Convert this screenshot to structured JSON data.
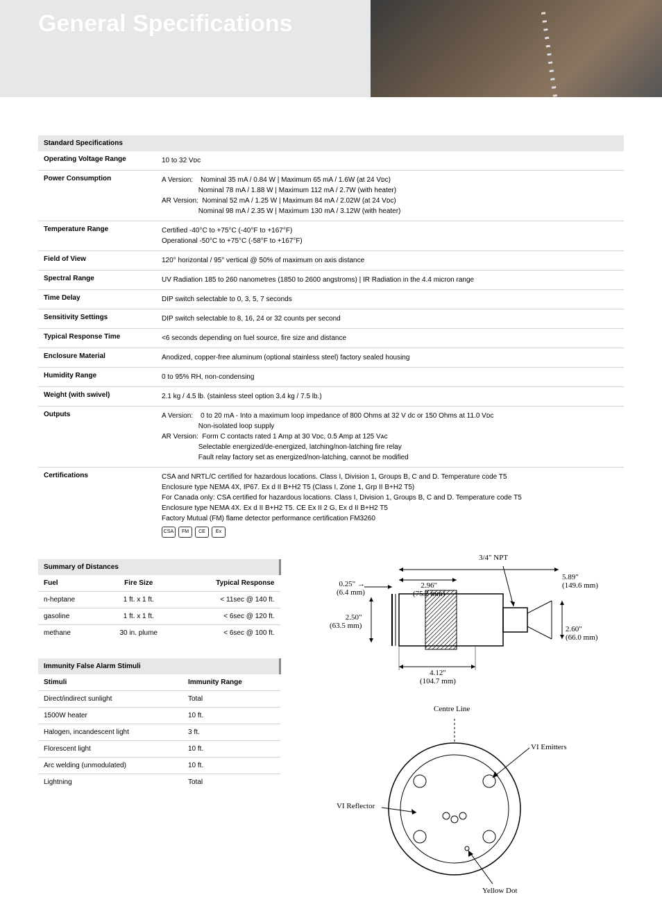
{
  "header": {
    "title": "General Specifications"
  },
  "specs": {
    "section_title": "Standard Specifications",
    "rows": [
      {
        "label": "Operating Voltage Range",
        "value": "10 to 32 Vᴅᴄ"
      },
      {
        "label": "Power Consumption",
        "value": "A Version:&nbsp;&nbsp;&nbsp;&nbsp;Nominal 35 mA / 0.84 W | Maximum 65 mA / 1.6W (at 24 Vᴅᴄ)<br>&nbsp;&nbsp;&nbsp;&nbsp;&nbsp;&nbsp;&nbsp;&nbsp;&nbsp;&nbsp;&nbsp;&nbsp;&nbsp;&nbsp;&nbsp;&nbsp;&nbsp;&nbsp;&nbsp;Nominal 78 mA / 1.88 W | Maximum 112 mA / 2.7W (with heater)<br>AR Version:&nbsp;&nbsp;Nominal 52 mA / 1.25 W | Maximum 84 mA / 2.02W (at 24 Vᴅᴄ)<br>&nbsp;&nbsp;&nbsp;&nbsp;&nbsp;&nbsp;&nbsp;&nbsp;&nbsp;&nbsp;&nbsp;&nbsp;&nbsp;&nbsp;&nbsp;&nbsp;&nbsp;&nbsp;&nbsp;Nominal 98 mA / 2.35 W | Maximum 130 mA / 3.12W (with heater)"
      },
      {
        "label": "Temperature Range",
        "value": "Certified -40°C to +75°C (-40°F to +167°F)<br>Operational -50°C to +75°C (-58°F to +167°F)"
      },
      {
        "label": "Field of View",
        "value": "120° horizontal / 95° vertical @ 50% of maximum on axis distance"
      },
      {
        "label": "Spectral Range",
        "value": "UV Radiation 185 to 260 nanometres (1850 to 2600 angstroms) | IR Radiation in the 4.4 micron range"
      },
      {
        "label": "Time Delay",
        "value": "DIP switch selectable to 0, 3, 5, 7 seconds"
      },
      {
        "label": "Sensitivity Settings",
        "value": "DIP switch selectable to 8, 16, 24 or 32 counts per second"
      },
      {
        "label": "Typical Response Time",
        "value": "<6 seconds depending on fuel source, fire size and distance"
      },
      {
        "label": "Enclosure Material",
        "value": "Anodized, copper-free aluminum (optional stainless steel) factory sealed housing"
      },
      {
        "label": "Humidity Range",
        "value": "0 to 95% RH, non-condensing"
      },
      {
        "label": "Weight (with swivel)",
        "value": "2.1 kg / 4.5 lb. (stainless steel option 3.4 kg / 7.5 lb.)"
      },
      {
        "label": "Outputs",
        "value": "A Version:&nbsp;&nbsp;&nbsp;&nbsp;0 to 20 mA - Into a maximum loop impedance of 800 Ohms at 32 V dc or 150 Ohms at 11.0 Vᴅᴄ<br>&nbsp;&nbsp;&nbsp;&nbsp;&nbsp;&nbsp;&nbsp;&nbsp;&nbsp;&nbsp;&nbsp;&nbsp;&nbsp;&nbsp;&nbsp;&nbsp;&nbsp;&nbsp;&nbsp;Non-isolated loop supply<br>AR Version:&nbsp;&nbsp;Form C contacts rated 1 Amp at 30 Vᴅᴄ, 0.5 Amp at 125 Vᴀᴄ<br>&nbsp;&nbsp;&nbsp;&nbsp;&nbsp;&nbsp;&nbsp;&nbsp;&nbsp;&nbsp;&nbsp;&nbsp;&nbsp;&nbsp;&nbsp;&nbsp;&nbsp;&nbsp;&nbsp;Selectable energized/de-energized, latching/non-latching fire relay<br>&nbsp;&nbsp;&nbsp;&nbsp;&nbsp;&nbsp;&nbsp;&nbsp;&nbsp;&nbsp;&nbsp;&nbsp;&nbsp;&nbsp;&nbsp;&nbsp;&nbsp;&nbsp;&nbsp;Fault relay factory set as energized/non-latching, cannot be modified"
      },
      {
        "label": "Certifications",
        "value": "CSA and NRTL/C certified for hazardous locations. Class I, Division 1, Groups B, C and D. Temperature code T5<br>Enclosure type NEMA 4X, IP67. Ex d II B+H2 T5 (Class I, Zone 1, Grp II B+H2 T5)<br>For Canada only: CSA certified for hazardous locations. Class I, Division 1, Groups B, C and D. Temperature code T5<br>Enclosure type NEMA 4X. Ex d II B+H2 T5. CE Ex II 2 G, Ex d II B+H2 T5<br>Factory Mutual (FM) flame detector performance certification FM3260"
      }
    ]
  },
  "distances": {
    "section_title": "Summary of Distances",
    "headers": [
      "Fuel",
      "Fire Size",
      "Typical Response"
    ],
    "rows": [
      [
        "n-heptane",
        "1 ft. x 1 ft.",
        "< 11sec @ 140 ft."
      ],
      [
        "gasoline",
        "1 ft. x 1 ft.",
        "< 6sec @ 120 ft."
      ],
      [
        "methane",
        "30 in. plume",
        "< 6sec @ 100 ft."
      ]
    ]
  },
  "immunity": {
    "section_title": "Immunity False Alarm Stimuli",
    "headers": [
      "Stimuli",
      "Immunity Range"
    ],
    "rows": [
      [
        "Direct/indirect sunlight",
        "Total"
      ],
      [
        "1500W heater",
        "10 ft."
      ],
      [
        "Halogen, incandescent light",
        "3 ft."
      ],
      [
        "Florescent light",
        "10 ft."
      ],
      [
        "Arc welding (unmodulated)",
        "10 ft."
      ],
      [
        "Lightning",
        "Total"
      ]
    ]
  },
  "dimensions": {
    "npt": "3/4\" NPT",
    "d1": "0.25\"",
    "d1m": "(6.4 mm)",
    "d2": "2.96\"",
    "d2m": "(75.2 mm)",
    "d3": "5.89\"",
    "d3m": "(149.6 mm)",
    "d4": "2.50\"",
    "d4m": "(63.5 mm)",
    "d5": "2.60\"",
    "d5m": "(66.0 mm)",
    "d6": "4.12\"",
    "d6m": "(104.7 mm)"
  },
  "face": {
    "centre": "Centre Line",
    "emitters": "VI Emitters",
    "reflector": "VI Reflector",
    "yellow": "Yellow Dot"
  },
  "cert_icons": [
    "CSA",
    "FM",
    "CE",
    "Ex"
  ],
  "colors": {
    "band_bg": "#e6e7e8",
    "border": "#d0d0d0",
    "title": "#ffffff"
  }
}
